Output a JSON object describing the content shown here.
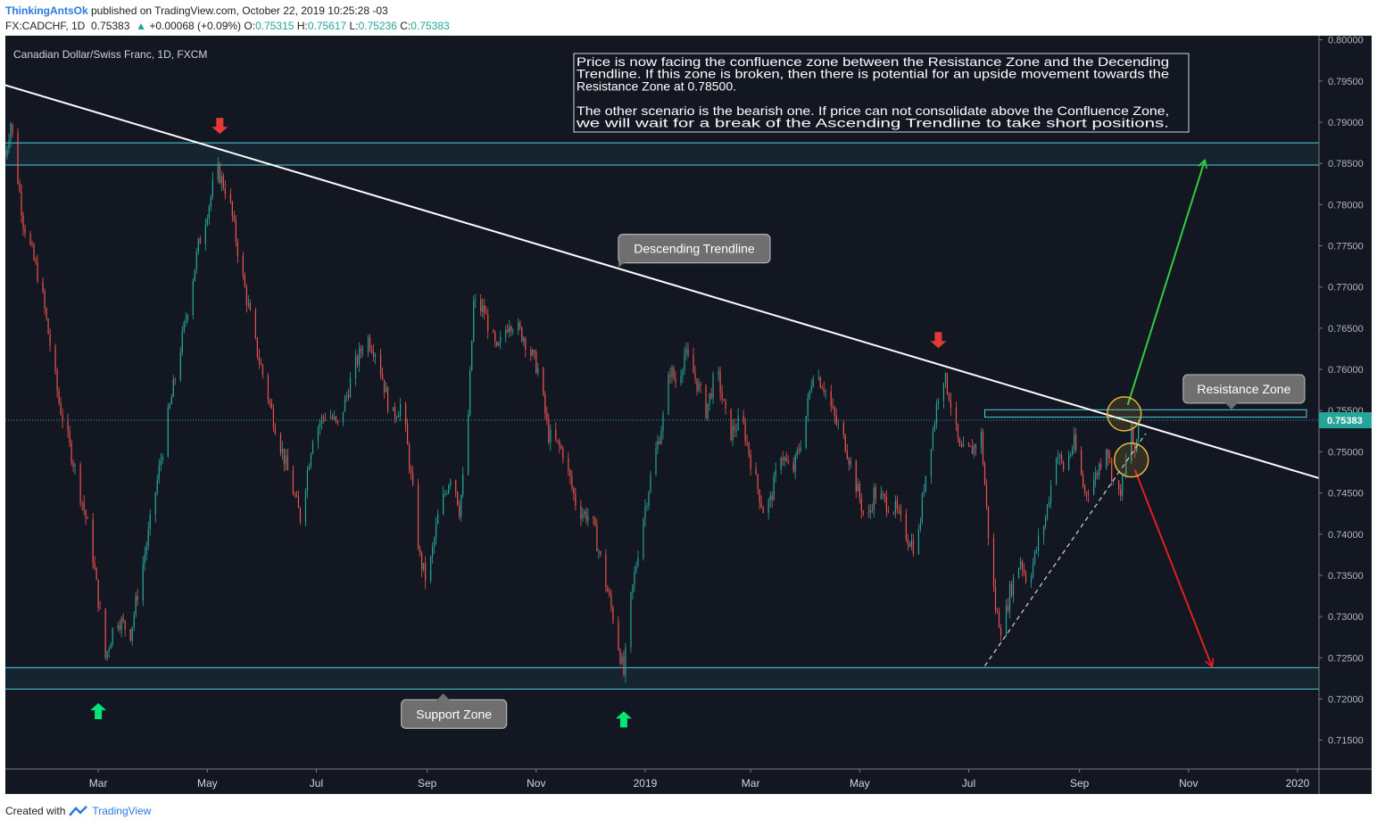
{
  "header": {
    "user": "ThinkingAntsOk",
    "published": " published on TradingView.com, October 22, 2019 10:25:28 -03",
    "symbol": "FX:CADCHF, 1D",
    "last": "0.75383",
    "change_arrow": "▲",
    "change": "+0.00068 (+0.09%)",
    "o_label": "O:",
    "o": "0.75315",
    "h_label": "H:",
    "h": "0.75617",
    "l_label": "L:",
    "l": "0.75236",
    "c_label": "C:",
    "c": "0.75383"
  },
  "footer": {
    "created_with": "Created with",
    "brand": "TradingView"
  },
  "colors": {
    "background": "#131722",
    "up": "#26a69a",
    "down": "#ef5350",
    "zone": "#4dd0e1",
    "trendline": "#ffffff",
    "arrow_up": "#00e676",
    "arrow_down": "#e53935",
    "projection_up": "#2ecc40",
    "projection_down": "#e02020",
    "circle": "#e5b53a",
    "label_bg": "#6f6f6f"
  },
  "chart_data": {
    "type": "candlestick",
    "title": "Canadian Dollar/Swiss Franc, 1D, FXCM",
    "ylim": [
      0.7115,
      0.8005
    ],
    "x_range_days": [
      0,
      735
    ],
    "y_ticks": [
      "0.80000",
      "0.79500",
      "0.79000",
      "0.78500",
      "0.78000",
      "0.77500",
      "0.77000",
      "0.76500",
      "0.76000",
      "0.75500",
      "0.75000",
      "0.74500",
      "0.74000",
      "0.73500",
      "0.73000",
      "0.72500",
      "0.72000",
      "0.71500"
    ],
    "x_ticks": [
      {
        "label": "Mar",
        "day": 52
      },
      {
        "label": "May",
        "day": 113
      },
      {
        "label": "Jul",
        "day": 174
      },
      {
        "label": "Sep",
        "day": 236
      },
      {
        "label": "Nov",
        "day": 297
      },
      {
        "label": "2019",
        "day": 358
      },
      {
        "label": "Mar",
        "day": 417
      },
      {
        "label": "May",
        "day": 478
      },
      {
        "label": "Jul",
        "day": 539
      },
      {
        "label": "Sep",
        "day": 601
      },
      {
        "label": "Nov",
        "day": 662
      },
      {
        "label": "2020",
        "day": 723
      }
    ],
    "last_price": 0.75383,
    "last_price_label": "0.75383",
    "waypoints": [
      [
        0,
        0.786
      ],
      [
        3,
        0.79
      ],
      [
        10,
        0.778
      ],
      [
        20,
        0.77
      ],
      [
        30,
        0.756
      ],
      [
        40,
        0.747
      ],
      [
        48,
        0.739
      ],
      [
        56,
        0.725
      ],
      [
        62,
        0.73
      ],
      [
        70,
        0.728
      ],
      [
        80,
        0.74
      ],
      [
        90,
        0.753
      ],
      [
        100,
        0.765
      ],
      [
        108,
        0.775
      ],
      [
        115,
        0.781
      ],
      [
        118,
        0.7845
      ],
      [
        125,
        0.781
      ],
      [
        132,
        0.772
      ],
      [
        140,
        0.763
      ],
      [
        150,
        0.754
      ],
      [
        160,
        0.746
      ],
      [
        165,
        0.742
      ],
      [
        172,
        0.752
      ],
      [
        180,
        0.755
      ],
      [
        186,
        0.753
      ],
      [
        195,
        0.76
      ],
      [
        202,
        0.764
      ],
      [
        208,
        0.762
      ],
      [
        216,
        0.754
      ],
      [
        222,
        0.756
      ],
      [
        228,
        0.745
      ],
      [
        232,
        0.737
      ],
      [
        236,
        0.734
      ],
      [
        242,
        0.742
      ],
      [
        250,
        0.748
      ],
      [
        254,
        0.743
      ],
      [
        258,
        0.75
      ],
      [
        262,
        0.768
      ],
      [
        268,
        0.767
      ],
      [
        275,
        0.762
      ],
      [
        282,
        0.766
      ],
      [
        290,
        0.764
      ],
      [
        298,
        0.76
      ],
      [
        304,
        0.752
      ],
      [
        312,
        0.75
      ],
      [
        320,
        0.743
      ],
      [
        328,
        0.742
      ],
      [
        334,
        0.736
      ],
      [
        340,
        0.73
      ],
      [
        346,
        0.723
      ],
      [
        350,
        0.732
      ],
      [
        356,
        0.741
      ],
      [
        362,
        0.748
      ],
      [
        368,
        0.754
      ],
      [
        372,
        0.76
      ],
      [
        376,
        0.758
      ],
      [
        380,
        0.762
      ],
      [
        386,
        0.759
      ],
      [
        392,
        0.755
      ],
      [
        398,
        0.76
      ],
      [
        405,
        0.752
      ],
      [
        412,
        0.754
      ],
      [
        418,
        0.748
      ],
      [
        424,
        0.743
      ],
      [
        428,
        0.744
      ],
      [
        434,
        0.75
      ],
      [
        440,
        0.747
      ],
      [
        447,
        0.753
      ],
      [
        452,
        0.76
      ],
      [
        458,
        0.758
      ],
      [
        464,
        0.754
      ],
      [
        470,
        0.751
      ],
      [
        476,
        0.746
      ],
      [
        482,
        0.741
      ],
      [
        486,
        0.745
      ],
      [
        492,
        0.744
      ],
      [
        498,
        0.743
      ],
      [
        504,
        0.74
      ],
      [
        510,
        0.738
      ],
      [
        514,
        0.746
      ],
      [
        520,
        0.754
      ],
      [
        524,
        0.76
      ],
      [
        528,
        0.757
      ],
      [
        534,
        0.75
      ],
      [
        540,
        0.75
      ],
      [
        546,
        0.752
      ],
      [
        550,
        0.74
      ],
      [
        554,
        0.731
      ],
      [
        558,
        0.728
      ],
      [
        562,
        0.733
      ],
      [
        568,
        0.737
      ],
      [
        572,
        0.734
      ],
      [
        578,
        0.739
      ],
      [
        582,
        0.742
      ],
      [
        588,
        0.75
      ],
      [
        592,
        0.748
      ],
      [
        598,
        0.751
      ],
      [
        604,
        0.745
      ],
      [
        610,
        0.747
      ],
      [
        616,
        0.751
      ],
      [
        622,
        0.744
      ],
      [
        626,
        0.747
      ],
      [
        630,
        0.753
      ],
      [
        632,
        0.749
      ],
      [
        634,
        0.7538
      ]
    ],
    "resistance_zone": [
      0.7848,
      0.7875
    ],
    "support_zone": [
      0.7212,
      0.7238
    ],
    "confluence_zone": [
      0.7542,
      0.7551
    ],
    "descending_trendline": [
      [
        0,
        0.7945
      ],
      [
        735,
        0.7468
      ]
    ],
    "ascending_trendline": [
      [
        548,
        0.724
      ],
      [
        638,
        0.7522
      ]
    ],
    "annotations": [
      {
        "text": "Descending Trendline",
        "anchor_day": 343,
        "anchor_price": 0.7725
      },
      {
        "text": "Resistance Zone",
        "anchor_day": 686,
        "anchor_price": 0.7546
      },
      {
        "text": "Support Zone",
        "anchor_day": 245,
        "anchor_price": 0.7212
      }
    ],
    "note": [
      "Price is now facing the confluence zone between the Resistance Zone and the Decending",
      "Trendline. If this zone is broken, then there is potential for an upside movement towards the",
      "Resistance Zone at 0.78500.",
      "",
      "The other scenario is the bearish one. If price can not consolidate above the Confluence Zone,",
      "we will wait for a break of the Ascending Trendline to take short positions."
    ],
    "down_arrows": [
      {
        "day": 120,
        "price": 0.7875
      },
      {
        "day": 522,
        "price": 0.7615
      }
    ],
    "up_arrows": [
      {
        "day": 52,
        "price": 0.7208
      },
      {
        "day": 346,
        "price": 0.7198
      }
    ],
    "projection_up": [
      [
        628,
        0.7557
      ],
      [
        671,
        0.7853
      ]
    ],
    "projection_down": [
      [
        632,
        0.7478
      ],
      [
        675,
        0.724
      ]
    ],
    "circles": [
      {
        "day": 626,
        "price": 0.7546
      },
      {
        "day": 630,
        "price": 0.749
      }
    ]
  }
}
